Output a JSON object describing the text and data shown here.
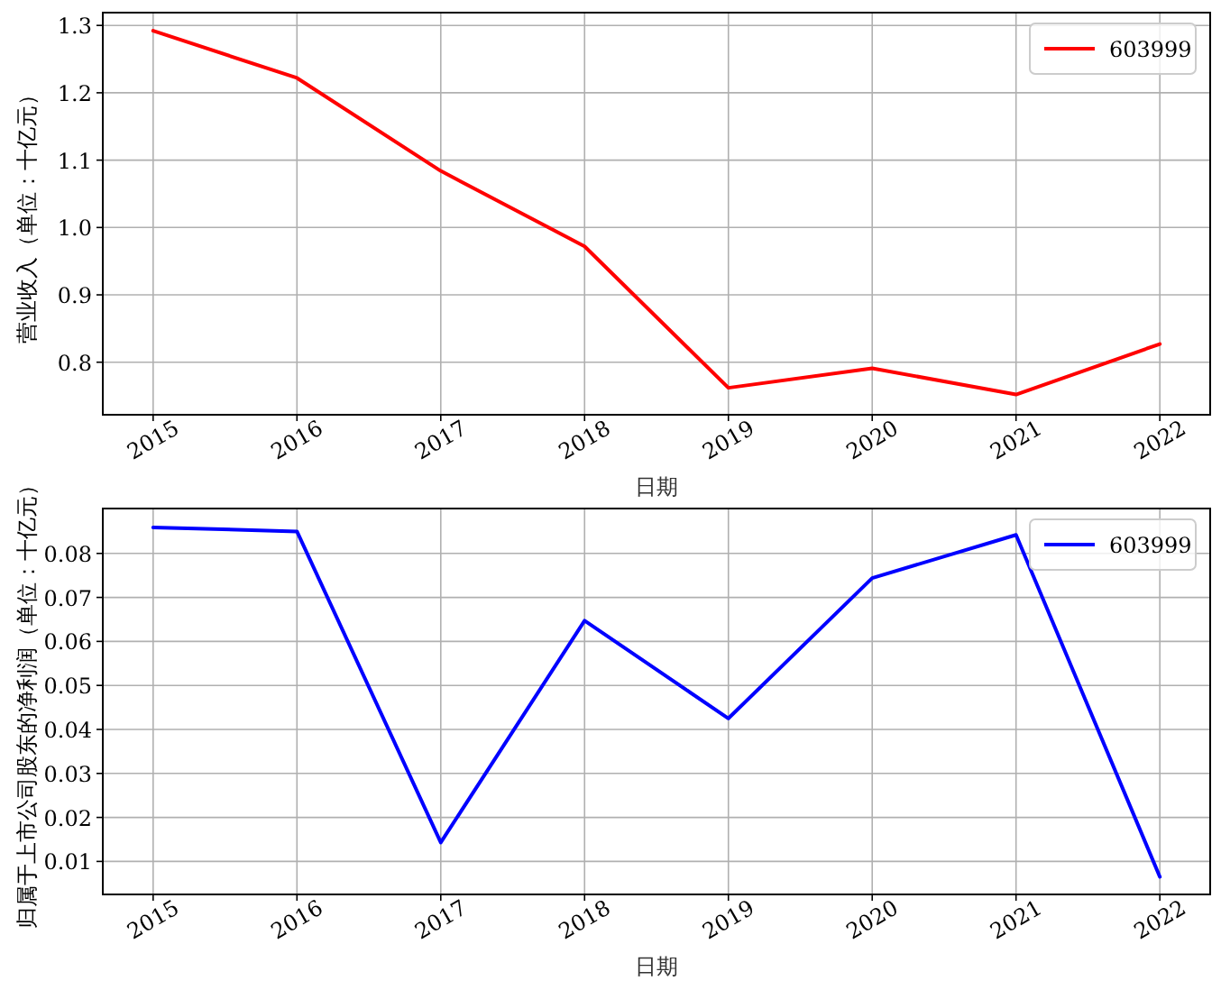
{
  "chart_data": [
    {
      "type": "line",
      "xlabel": "日期",
      "ylabel": "营业收入（单位：十亿元）",
      "x": [
        2015,
        2016,
        2017,
        2018,
        2019,
        2020,
        2021,
        2022
      ],
      "series": [
        {
          "name": "603999",
          "color": "#ff0000",
          "values": [
            1.292,
            1.222,
            1.084,
            0.972,
            0.762,
            0.791,
            0.752,
            0.827
          ]
        }
      ],
      "xlim": [
        2014.65,
        2022.35
      ],
      "xticks": [
        2015,
        2016,
        2017,
        2018,
        2019,
        2020,
        2021,
        2022
      ],
      "ylim": [
        0.722,
        1.319
      ],
      "yticks": [
        {
          "value": 0.8,
          "label": "0.8"
        },
        {
          "value": 0.9,
          "label": "0.9"
        },
        {
          "value": 1.0,
          "label": "1.0"
        },
        {
          "value": 1.1,
          "label": "1.1"
        },
        {
          "value": 1.2,
          "label": "1.2"
        },
        {
          "value": 1.3,
          "label": "1.3"
        }
      ],
      "grid": true,
      "legend": "top right"
    },
    {
      "type": "line",
      "xlabel": "日期",
      "ylabel": "归属于上市公司股东的净利润（单位：十亿元）",
      "x": [
        2015,
        2016,
        2017,
        2018,
        2019,
        2020,
        2021,
        2022
      ],
      "series": [
        {
          "name": "603999",
          "color": "#0000ff",
          "values": [
            0.0859,
            0.085,
            0.0143,
            0.0647,
            0.0425,
            0.0744,
            0.0842,
            0.0065
          ]
        }
      ],
      "xlim": [
        2014.65,
        2022.35
      ],
      "xticks": [
        2015,
        2016,
        2017,
        2018,
        2019,
        2020,
        2021,
        2022
      ],
      "ylim": [
        0.0025,
        0.0902
      ],
      "yticks": [
        0.01,
        0.02,
        0.03,
        0.04,
        0.05,
        0.06,
        0.07,
        0.08
      ],
      "grid": true,
      "legend": "top right"
    }
  ]
}
